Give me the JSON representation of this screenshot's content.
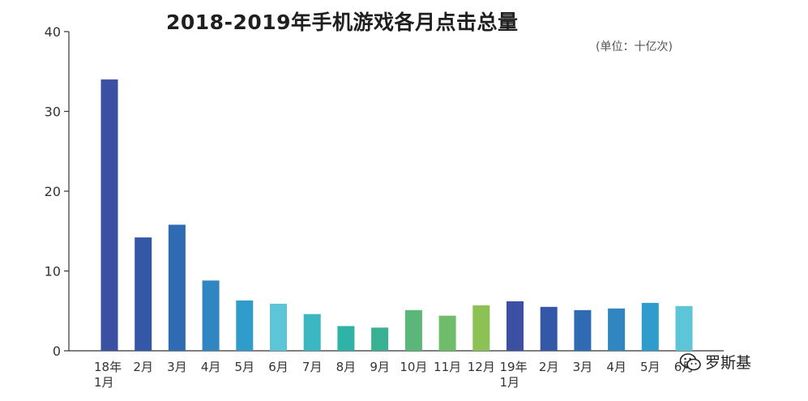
{
  "chart_data": {
    "type": "bar",
    "title": "2018-2019年手机游戏各月点击总量",
    "unit_note": "(单位：十亿次)",
    "categories": [
      [
        "18年",
        "1月"
      ],
      [
        "2月"
      ],
      [
        "3月"
      ],
      [
        "4月"
      ],
      [
        "5月"
      ],
      [
        "6月"
      ],
      [
        "7月"
      ],
      [
        "8月"
      ],
      [
        "9月"
      ],
      [
        "10月"
      ],
      [
        "11月"
      ],
      [
        "12月"
      ],
      [
        "19年",
        "1月"
      ],
      [
        "2月"
      ],
      [
        "3月"
      ],
      [
        "4月"
      ],
      [
        "5月"
      ],
      [
        "6月"
      ]
    ],
    "values": [
      34.0,
      14.2,
      15.8,
      8.8,
      6.3,
      5.9,
      4.6,
      3.1,
      2.9,
      5.1,
      4.4,
      5.7,
      6.2,
      5.5,
      5.1,
      5.3,
      6.0,
      5.6
    ],
    "colors": [
      "#3b4fa3",
      "#3457a8",
      "#2f6bb3",
      "#2f86c0",
      "#2f9ccb",
      "#5cc5d8",
      "#3bb7c2",
      "#2fb3a6",
      "#3ab193",
      "#5bb679",
      "#6fbd6a",
      "#8cc153",
      "#3b4fa3",
      "#3457a8",
      "#2f6bb3",
      "#2f86c0",
      "#2f9ccb",
      "#5cc5d8"
    ],
    "ylim": [
      0,
      40
    ],
    "yticks": [
      0,
      10,
      20,
      30,
      40
    ],
    "xlabel": "",
    "ylabel": "",
    "grid": false
  },
  "credit": {
    "icon": "wechat-icon",
    "text": "罗斯基"
  }
}
